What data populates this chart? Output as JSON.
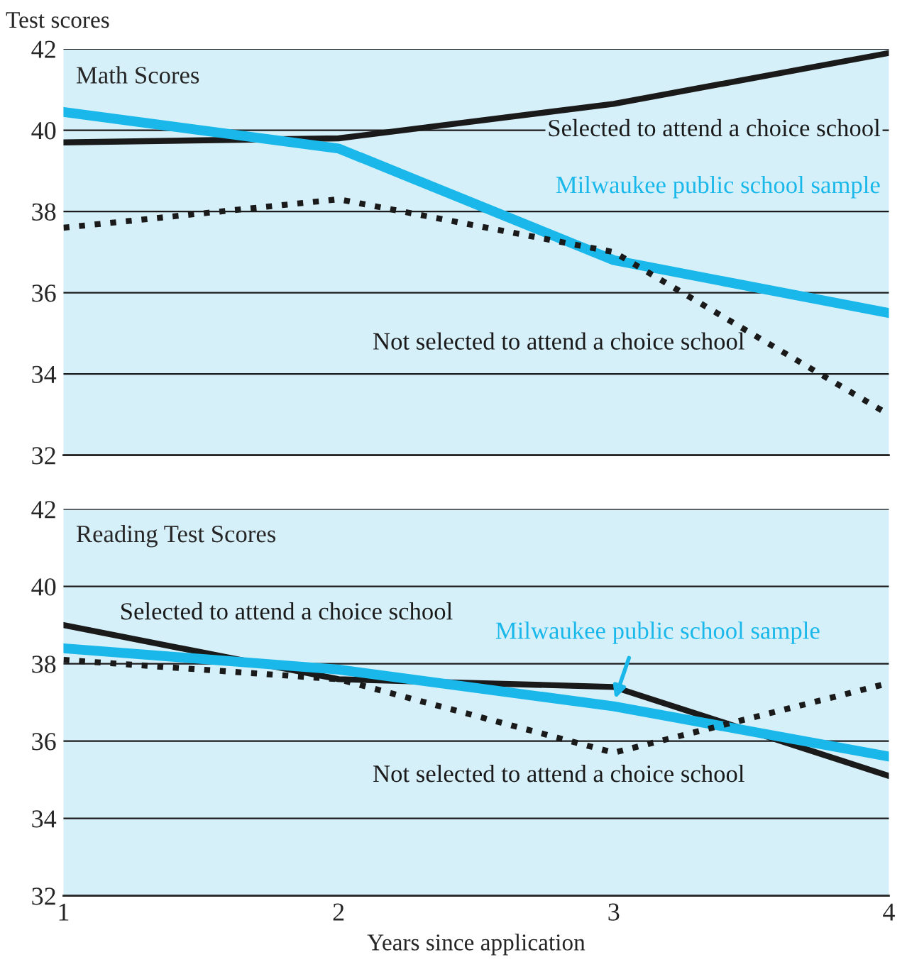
{
  "chart_data": [
    {
      "type": "line",
      "title": "Math Scores",
      "ylabel": "Test scores",
      "x": [
        1,
        2,
        3,
        4
      ],
      "xlim": [
        1,
        4
      ],
      "xticks": [
        1,
        2,
        3,
        4
      ],
      "ylim": [
        32,
        42
      ],
      "yticks": [
        32,
        34,
        36,
        38,
        40,
        42
      ],
      "grid": "y",
      "tick_labels": "y",
      "legend": false,
      "series": [
        {
          "name": "Selected to attend a choice school",
          "color": "#1a1a1a",
          "line_style": "solid",
          "values": [
            39.7,
            39.8,
            40.65,
            41.9
          ]
        },
        {
          "name": "Milwaukee public school sample",
          "color": "#1ab8ea",
          "line_style": "solid",
          "values": [
            40.45,
            39.55,
            36.8,
            35.5
          ]
        },
        {
          "name": "Not selected to attend a choice school",
          "color": "#1a1a1a",
          "line_style": "dotted",
          "values": [
            37.6,
            38.3,
            37.0,
            33.0
          ]
        }
      ]
    },
    {
      "type": "line",
      "title": "Reading Test Scores",
      "xlabel": "Years since application",
      "x": [
        1,
        2,
        3,
        4
      ],
      "xlim": [
        1,
        4
      ],
      "xticks": [
        1,
        2,
        3,
        4
      ],
      "ylim": [
        32,
        42
      ],
      "yticks": [
        32,
        34,
        36,
        38,
        40,
        42
      ],
      "grid": "y",
      "legend": false,
      "series": [
        {
          "name": "Selected to attend a choice school",
          "color": "#1a1a1a",
          "line_style": "solid",
          "values": [
            39.0,
            37.6,
            37.4,
            35.1
          ]
        },
        {
          "name": "Milwaukee public school sample",
          "color": "#1ab8ea",
          "line_style": "solid",
          "values": [
            38.4,
            37.85,
            36.9,
            35.6
          ]
        },
        {
          "name": "Not selected to attend a choice school",
          "color": "#1a1a1a",
          "line_style": "dotted",
          "values": [
            38.1,
            37.6,
            35.7,
            37.5
          ]
        }
      ]
    }
  ]
}
